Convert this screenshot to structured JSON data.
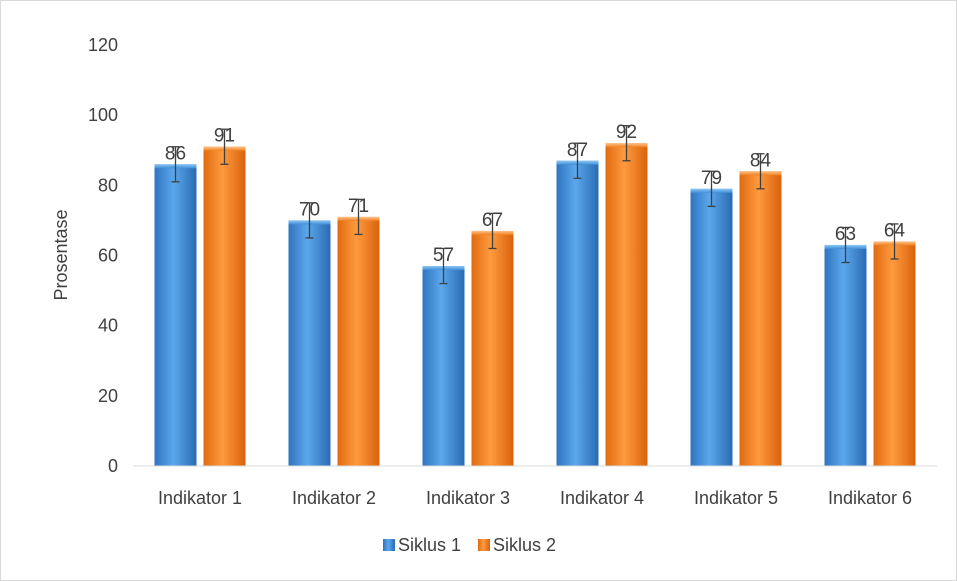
{
  "chart_data": {
    "type": "bar",
    "title": "",
    "xlabel": "",
    "ylabel": "Prosentase",
    "ylim": [
      0,
      120
    ],
    "yticks": [
      0,
      20,
      40,
      60,
      80,
      100,
      120
    ],
    "categories": [
      "Indikator 1",
      "Indikator 2",
      "Indikator 3",
      "Indikator 4",
      "Indikator 5",
      "Indikator 6"
    ],
    "series": [
      {
        "name": "Siklus 1",
        "values": [
          86,
          70,
          57,
          87,
          79,
          63
        ],
        "color": "#3f8fd6"
      },
      {
        "name": "Siklus 2",
        "values": [
          91,
          71,
          67,
          92,
          84,
          64
        ],
        "color": "#f0801f"
      }
    ],
    "error_bar": 5,
    "grid": false,
    "legend": "bottom",
    "data_labels": true
  }
}
